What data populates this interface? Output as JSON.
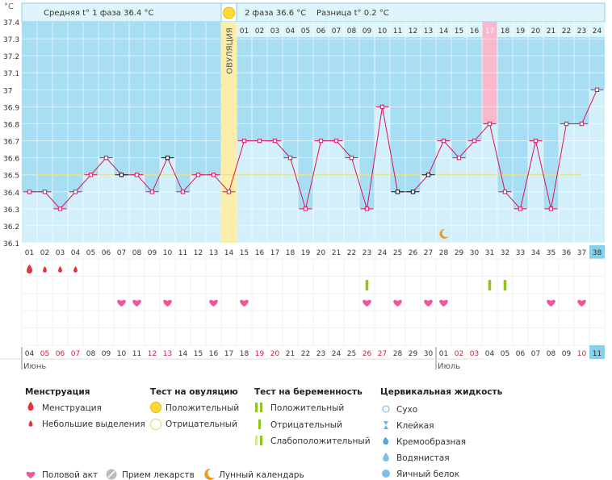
{
  "header": {
    "celsius": "°C",
    "phase1_text": "Средняя t° 1 фаза  36.4 °C",
    "phase2_text": "2 фаза  36.6 °C",
    "diff_text": "Разница t°  0.2 °C",
    "ovulation_label": "ОВУЛЯЦИЯ"
  },
  "chart_data": {
    "type": "line",
    "ylim": [
      36.1,
      37.4
    ],
    "y_ticks": [
      "37.4",
      "37.3",
      "37.2",
      "37.1",
      "37",
      "36.9",
      "36.8",
      "36.7",
      "36.6",
      "36.5",
      "36.4",
      "36.3",
      "36.2",
      "36.1"
    ],
    "cycle_days": [
      "01",
      "02",
      "03",
      "04",
      "05",
      "06",
      "07",
      "08",
      "09",
      "10",
      "11",
      "12",
      "13",
      "14",
      "15",
      "16",
      "17",
      "18",
      "19",
      "20",
      "21",
      "22",
      "23",
      "24",
      "25",
      "26",
      "27",
      "28",
      "29",
      "30",
      "31",
      "32",
      "33",
      "34",
      "35",
      "36",
      "37",
      "38"
    ],
    "temperatures": [
      36.4,
      36.4,
      36.3,
      36.4,
      36.5,
      36.6,
      36.5,
      36.5,
      36.4,
      36.6,
      36.4,
      36.5,
      36.5,
      36.4,
      36.7,
      36.7,
      36.7,
      36.6,
      36.3,
      36.7,
      36.7,
      36.6,
      36.3,
      36.9,
      36.4,
      36.4,
      36.5,
      36.7,
      36.6,
      36.7,
      36.8,
      36.4,
      36.3,
      36.7,
      36.3,
      36.8,
      36.8,
      37.0
    ],
    "excluded_days": [
      7,
      10,
      25,
      26,
      27
    ],
    "coverline": 36.5,
    "ovulation_day": 14,
    "post_ovulation_days": [
      "01",
      "02",
      "03",
      "04",
      "05",
      "06",
      "07",
      "08",
      "09",
      "10",
      "11",
      "12",
      "13",
      "14",
      "15",
      "16",
      "17",
      "18",
      "19",
      "20",
      "21",
      "22",
      "23",
      "24"
    ],
    "highlight_post_day": "17",
    "moon_day": 28,
    "dates": [
      "04",
      "05",
      "06",
      "07",
      "08",
      "09",
      "10",
      "11",
      "12",
      "13",
      "14",
      "15",
      "16",
      "17",
      "18",
      "19",
      "20",
      "21",
      "22",
      "23",
      "24",
      "25",
      "26",
      "27",
      "28",
      "29",
      "30",
      "01",
      "02",
      "03",
      "04",
      "05",
      "06",
      "07",
      "08",
      "09",
      "10",
      "11"
    ],
    "red_dates": [
      2,
      3,
      4,
      9,
      10,
      16,
      17,
      23,
      24,
      29,
      30,
      37
    ],
    "months": [
      {
        "label": "Июнь",
        "day": 1
      },
      {
        "label": "Июль",
        "day": 28
      }
    ],
    "menstruation": [
      {
        "day": 1,
        "size": "large"
      },
      {
        "day": 2,
        "size": "small"
      },
      {
        "day": 3,
        "size": "small"
      },
      {
        "day": 4,
        "size": "small"
      }
    ],
    "pregnancy_tests": [
      23,
      31,
      32
    ],
    "intercourse": [
      7,
      8,
      10,
      13,
      15,
      23,
      25,
      27,
      28,
      35,
      37
    ]
  },
  "legend": {
    "menstruation": {
      "title": "Менструация",
      "items": [
        "Менструация",
        "Небольшие выделения"
      ]
    },
    "ovulation_test": {
      "title": "Тест на овуляцию",
      "items": [
        "Положительный",
        "Отрицательный"
      ]
    },
    "pregnancy_test": {
      "title": "Тест на беременность",
      "items": [
        "Положительный",
        "Отрицательный",
        "Слабоположительный"
      ]
    },
    "cervical": {
      "title": "Цервикальная жидкость",
      "items": [
        "Сухо",
        "Клейкая",
        "Кремообразная",
        "Водянистая",
        "Яичный белок"
      ]
    },
    "bottom": [
      "Половой акт",
      "Прием лекарств",
      "Лунный календарь"
    ]
  },
  "colors": {
    "header_bg": "#e0f4fb",
    "grid_bg": "#a8def3",
    "bar": "#d3effa",
    "ovulation": "#fbeeaa",
    "line": "#d8125b",
    "coverline": "#e7e08c",
    "highlight": "#f9b8cc",
    "last_day": "#88cfe9"
  }
}
